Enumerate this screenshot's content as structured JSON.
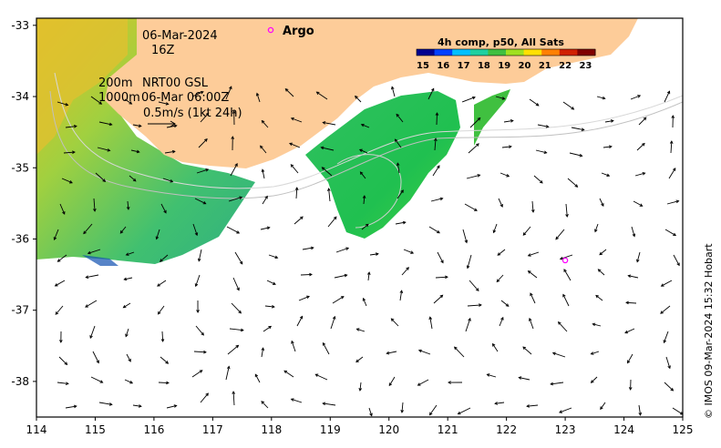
{
  "map": {
    "lon_min": 114,
    "lon_max": 125,
    "lat_min": -38.5,
    "lat_max": -32.9,
    "x_ticks": [
      114,
      115,
      116,
      117,
      118,
      119,
      120,
      121,
      122,
      123,
      124,
      125
    ],
    "y_ticks": [
      -33,
      -34,
      -35,
      -36,
      -37,
      -38
    ],
    "x_tick_labels": [
      "114",
      "115",
      "116",
      "117",
      "118",
      "119",
      "120",
      "121",
      "122",
      "123",
      "124",
      "125"
    ],
    "y_tick_labels": [
      "-33",
      "-34",
      "-35",
      "-36",
      "-37",
      "-38"
    ]
  },
  "annotations": {
    "date": "06-Mar-2024",
    "hour": "16Z",
    "contour_200": "200m",
    "contour_1000": "1000m",
    "product": "NRT00 GSL",
    "analysis_time": "06-Mar 06:00Z",
    "scale_label": "0.5m/s (1kt 24h)"
  },
  "legend": {
    "argo_symbol": "o",
    "argo_label": "Argo",
    "argo_color": "#ff00ff"
  },
  "argo_floats": [
    {
      "lon": 123.0,
      "lat": -36.3
    }
  ],
  "colorbar": {
    "title": "4h comp, p50, All Sats",
    "labels": [
      "15",
      "16",
      "17",
      "18",
      "19",
      "20",
      "21",
      "22",
      "23"
    ],
    "colors": [
      "#00008f",
      "#0040ff",
      "#00c0ff",
      "#20d0a0",
      "#40c040",
      "#a0e020",
      "#ffe000",
      "#ff8000",
      "#d02000",
      "#800000"
    ]
  },
  "credit": "© IMOS 09-Mar-2024 15:32 Hobart",
  "colors": {
    "land": "#fdcc99",
    "sst_warm": "#f0d020",
    "sst_mid": "#80d040",
    "sst_cool": "#20c070",
    "sst_cold": "#0040c0"
  }
}
